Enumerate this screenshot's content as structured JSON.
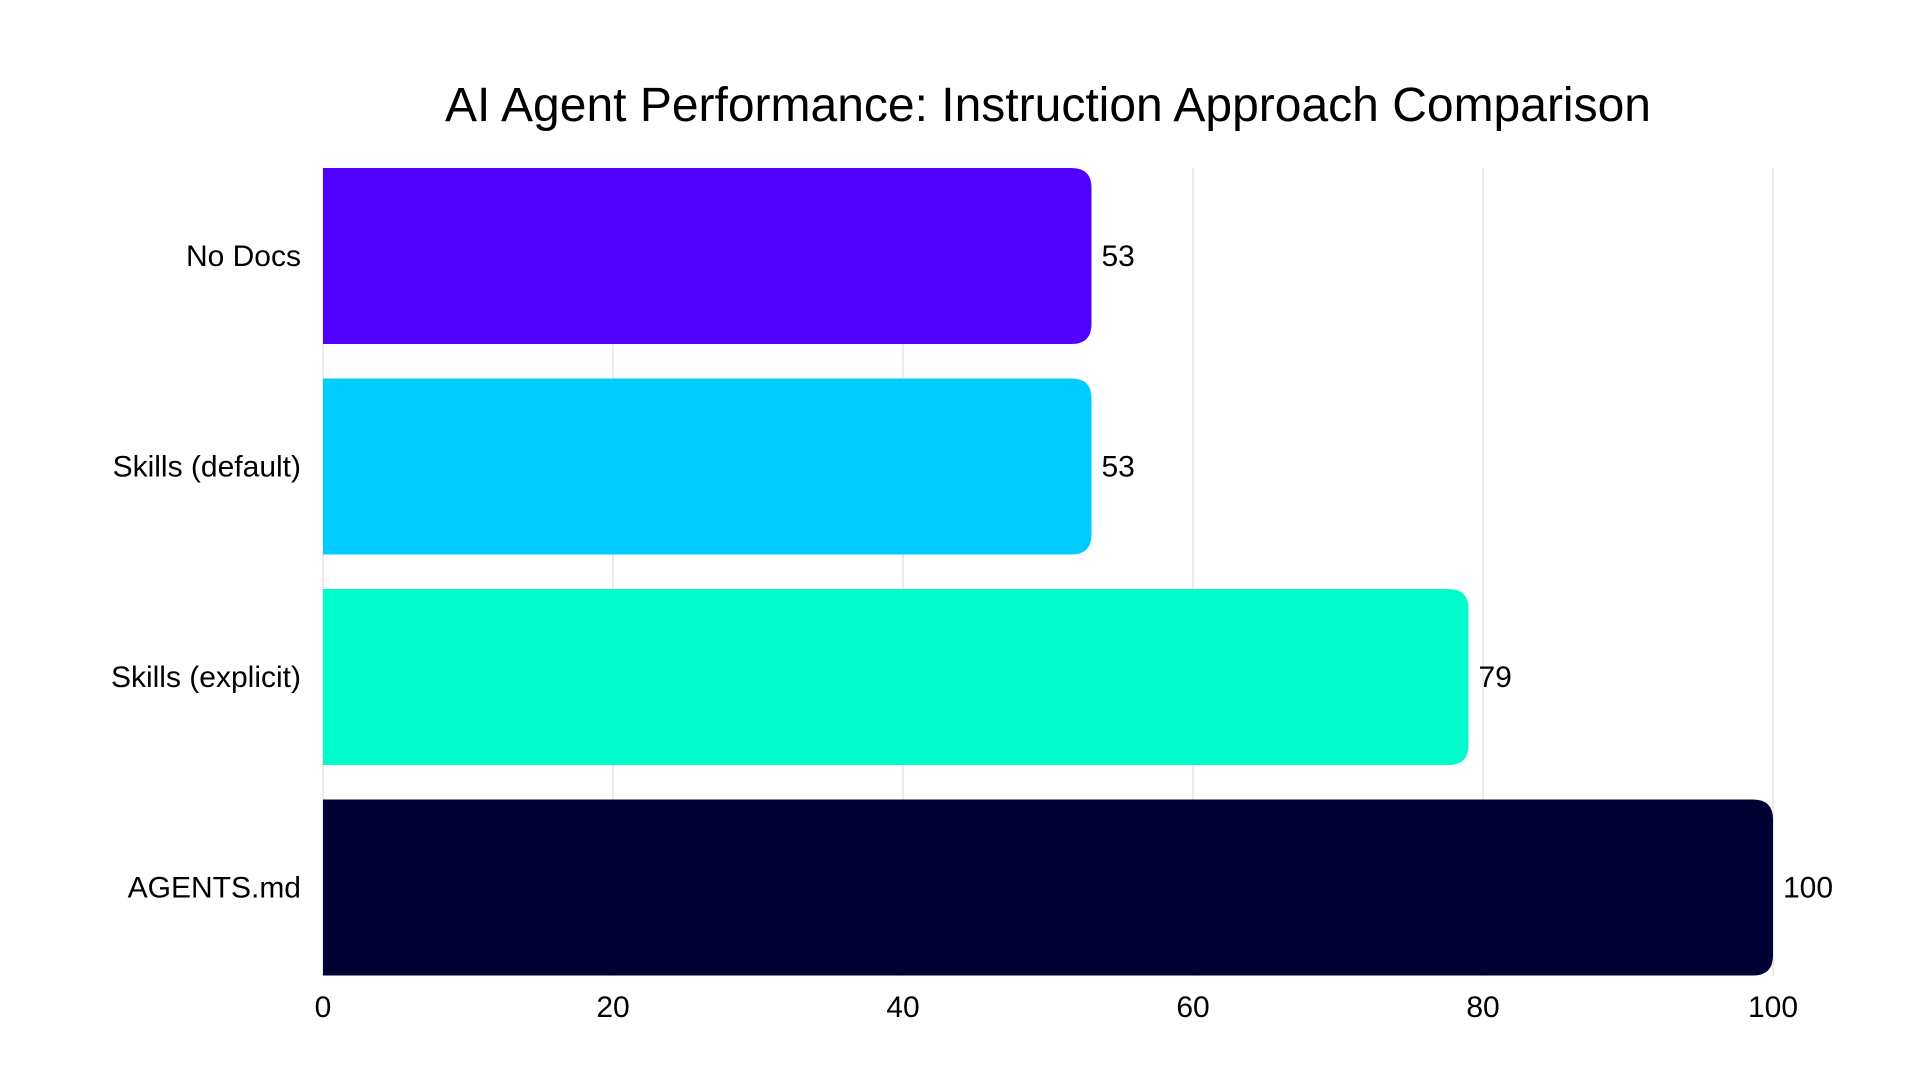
{
  "chart_data": {
    "type": "bar",
    "orientation": "horizontal",
    "title": "AI Agent Performance: Instruction Approach Comparison",
    "categories": [
      "No Docs",
      "Skills (default)",
      "Skills (explicit)",
      "AGENTS.md"
    ],
    "values": [
      53,
      53,
      79,
      100
    ],
    "colors": [
      "#5200ff",
      "#00ccff",
      "#00fccc",
      "#000033"
    ],
    "xlim": [
      0,
      100
    ],
    "xticks": [
      0,
      20,
      40,
      60,
      80,
      100
    ],
    "xlabel": "",
    "ylabel": "",
    "grid": "vertical",
    "data_labels": true
  }
}
